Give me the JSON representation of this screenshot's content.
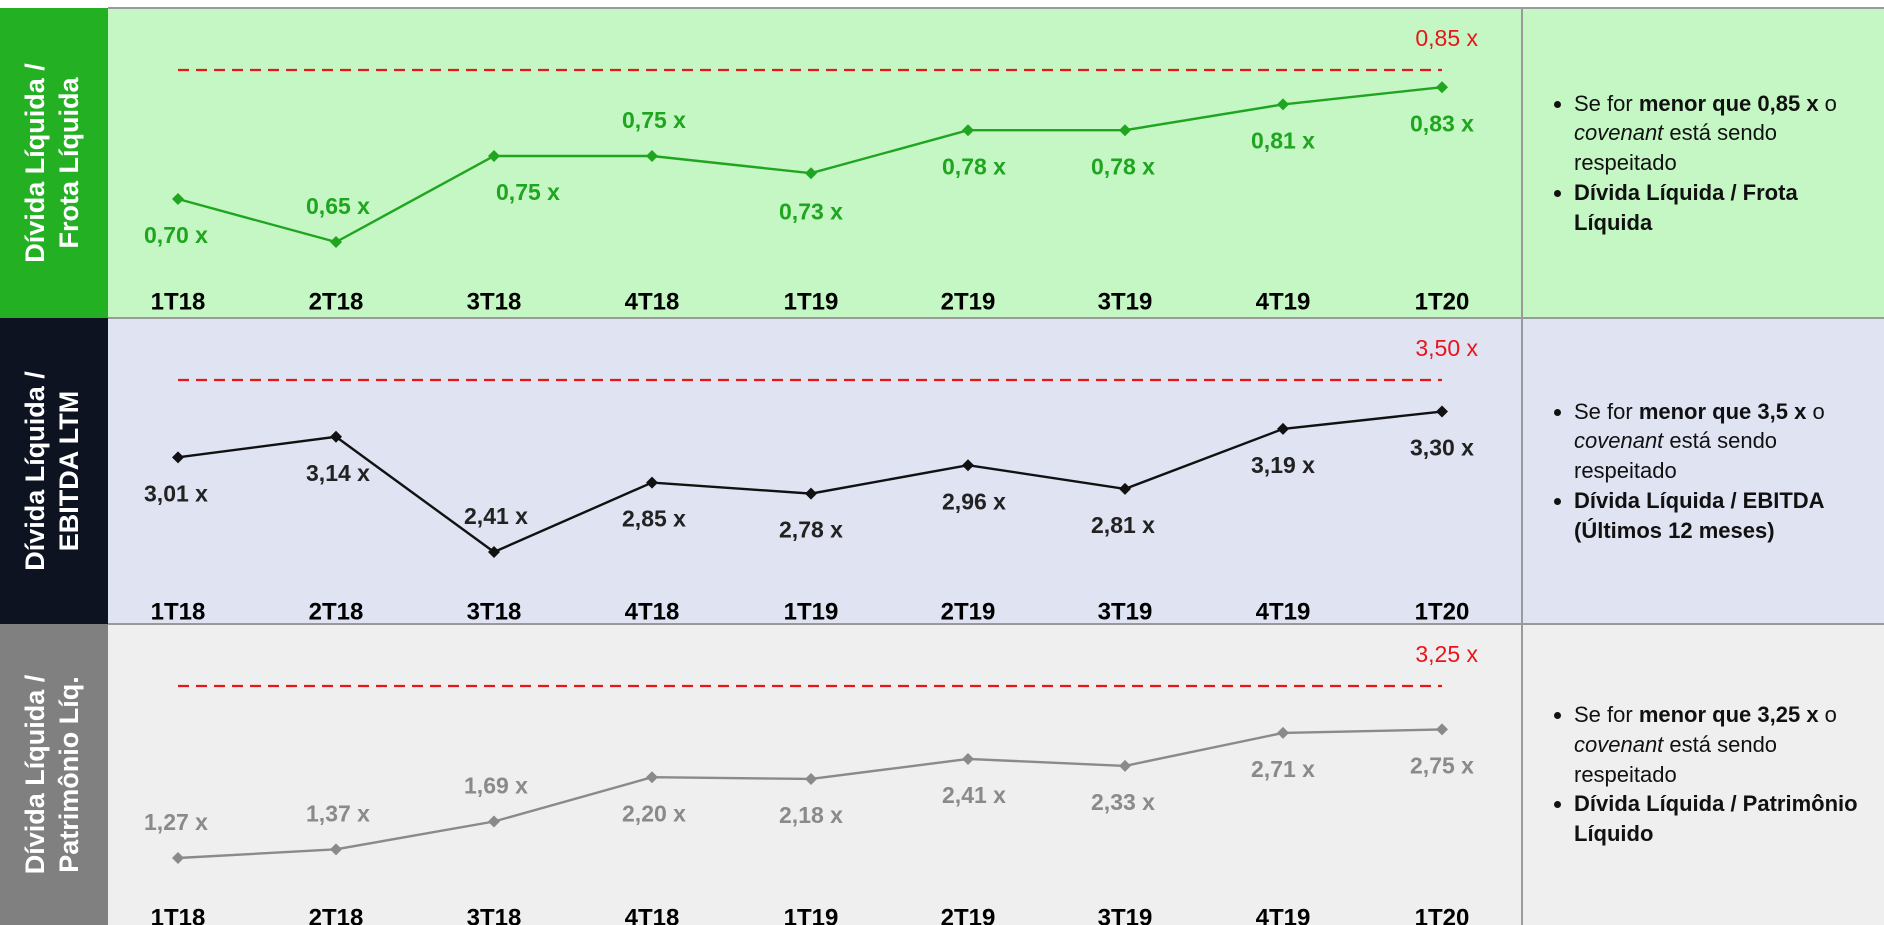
{
  "chart_data": [
    {
      "type": "line",
      "title_lines": [
        "Dívida Líquida /",
        "Frota Líquida"
      ],
      "categories": [
        "1T18",
        "2T18",
        "3T18",
        "4T18",
        "1T19",
        "2T19",
        "3T19",
        "4T19",
        "1T20"
      ],
      "values": [
        0.7,
        0.65,
        0.75,
        0.75,
        0.73,
        0.78,
        0.78,
        0.81,
        0.83
      ],
      "value_labels": [
        "0,70 x",
        "0,65 x",
        "0,75 x",
        "0,75 x",
        "0,73 x",
        "0,78 x",
        "0,78 x",
        "0,81 x",
        "0,83 x"
      ],
      "color": "#1fa51f",
      "label_color": "#1fa51f",
      "background": "#c4f7c4",
      "band_color": "#23b023",
      "threshold": {
        "value": 0.85,
        "label": "0,85 x",
        "color": "#e8151b"
      },
      "notes": [
        {
          "segments": [
            {
              "text": "Se for "
            },
            {
              "text": "menor que 0,85 x",
              "bold": true
            },
            {
              "text": " o "
            },
            {
              "text": "covenant",
              "italic": true
            },
            {
              "text": " está sendo respeitado"
            }
          ]
        },
        {
          "segments": [
            {
              "text": "Dívida Líquida / Frota Líquida",
              "bold": true
            }
          ]
        }
      ]
    },
    {
      "type": "line",
      "title_lines": [
        "Dívida Líquida /",
        "EBITDA LTM"
      ],
      "categories": [
        "1T18",
        "2T18",
        "3T18",
        "4T18",
        "1T19",
        "2T19",
        "3T19",
        "4T19",
        "1T20"
      ],
      "values": [
        3.01,
        3.14,
        2.41,
        2.85,
        2.78,
        2.96,
        2.81,
        3.19,
        3.3
      ],
      "value_labels": [
        "3,01 x",
        "3,14 x",
        "2,41 x",
        "2,85 x",
        "2,78 x",
        "2,96 x",
        "2,81 x",
        "3,19 x",
        "3,30 x"
      ],
      "color": "#111111",
      "label_color": "#222222",
      "background": "#dfe3f2",
      "band_color": "#0d1320",
      "threshold": {
        "value": 3.5,
        "label": "3,50 x",
        "color": "#e8151b"
      },
      "notes": [
        {
          "segments": [
            {
              "text": "Se for "
            },
            {
              "text": "menor que 3,5 x",
              "bold": true
            },
            {
              "text": " o "
            },
            {
              "text": "covenant",
              "italic": true
            },
            {
              "text": " está sendo respeitado"
            }
          ]
        },
        {
          "segments": [
            {
              "text": "Dívida Líquida / EBITDA (Últimos 12 meses)",
              "bold": true
            }
          ]
        }
      ]
    },
    {
      "type": "line",
      "title_lines": [
        "Dívida Líquida /",
        "Patrimônio Líq."
      ],
      "categories": [
        "1T18",
        "2T18",
        "3T18",
        "4T18",
        "1T19",
        "2T19",
        "3T19",
        "4T19",
        "1T20"
      ],
      "values": [
        1.27,
        1.37,
        1.69,
        2.2,
        2.18,
        2.41,
        2.33,
        2.71,
        2.75
      ],
      "value_labels": [
        "1,27 x",
        "1,37 x",
        "1,69 x",
        "2,20 x",
        "2,18 x",
        "2,41 x",
        "2,33 x",
        "2,71 x",
        "2,75 x"
      ],
      "color": "#8a8a8a",
      "label_color": "#8a8a8a",
      "background": "#efefef",
      "band_color": "#808080",
      "threshold": {
        "value": 3.25,
        "label": "3,25 x",
        "color": "#e8151b"
      },
      "notes": [
        {
          "segments": [
            {
              "text": "Se for "
            },
            {
              "text": "menor que 3,25 x",
              "bold": true
            },
            {
              "text": " o "
            },
            {
              "text": "covenant",
              "italic": true
            },
            {
              "text": " está sendo respeitado"
            }
          ]
        },
        {
          "segments": [
            {
              "text": "Dívida Líquida / Patrimônio Líquido",
              "bold": true
            }
          ]
        }
      ]
    }
  ]
}
